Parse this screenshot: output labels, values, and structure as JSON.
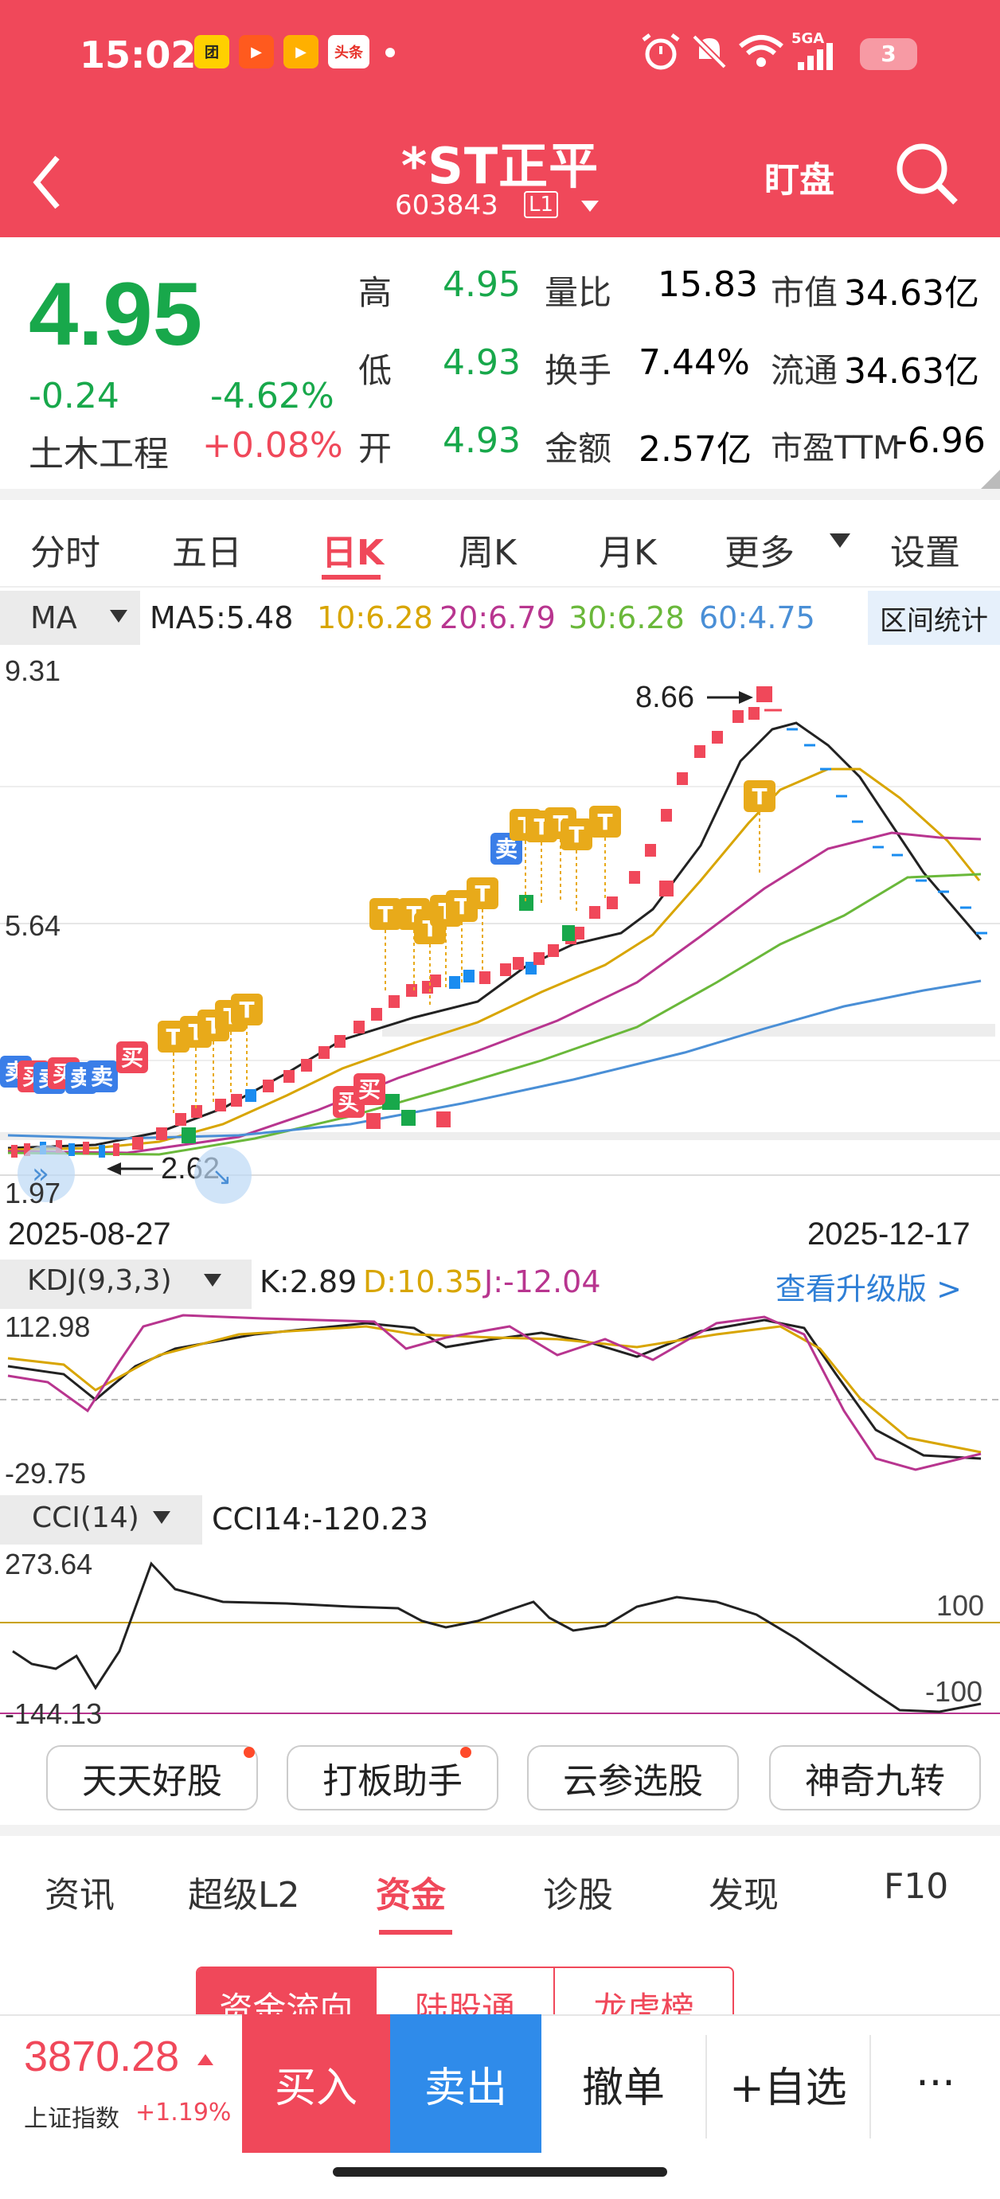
{
  "status_bar": {
    "time": "15:02",
    "apps": [
      {
        "name": "app-icon-1",
        "color": "#ffd000",
        "label": "团"
      },
      {
        "name": "app-icon-2",
        "color": "#ff5a1e",
        "label": "▶"
      },
      {
        "name": "app-icon-3",
        "color": "#ffb000",
        "label": "▶"
      },
      {
        "name": "app-icon-4",
        "color": "#e7332b",
        "label": "头条"
      }
    ],
    "signal": "5GA",
    "battery": "3"
  },
  "header": {
    "title": "*ST正平",
    "code": "603843",
    "level": "L1",
    "watch_label": "盯盘"
  },
  "quote": {
    "price": "4.95",
    "change": "-0.24",
    "change_pct": "-4.62%",
    "sector": "土木工程",
    "sector_pct": "+0.08%",
    "stats": [
      {
        "l1": "高",
        "v1": "4.95",
        "l2": "量比",
        "v2": "15.83",
        "l3": "市值",
        "v3": "34.63亿"
      },
      {
        "l1": "低",
        "v1": "4.93",
        "l2": "换手",
        "v2": "7.44%",
        "l3": "流通",
        "v3": "34.63亿"
      },
      {
        "l1": "开",
        "v1": "4.93",
        "l2": "金额",
        "v2": "2.57亿",
        "l3": "市盈TTM",
        "v3": "-6.96"
      }
    ]
  },
  "period_tabs": [
    "分时",
    "五日",
    "日K",
    "周K",
    "月K",
    "更多",
    "设置"
  ],
  "active_tab": "日K",
  "ma": {
    "selector": "MA",
    "items": [
      {
        "label": "MA5:5.48",
        "color": "#222222"
      },
      {
        "label": "10:6.28",
        "color": "#d8a500"
      },
      {
        "label": "20:6.79",
        "color": "#b8358f"
      },
      {
        "label": "30:6.28",
        "color": "#6ab83a"
      },
      {
        "label": "60:4.75",
        "color": "#4a8fd6"
      }
    ],
    "range_stats": "区间统计"
  },
  "chart_data": [
    {
      "type": "candlestick",
      "title": "",
      "y_ticks": [
        "9.31",
        "5.64",
        "1.97"
      ],
      "ylim": [
        1.97,
        9.31
      ],
      "annotations": [
        "8.66",
        "2.62"
      ],
      "date_start": "2025-08-27",
      "date_end": "2025-12-17",
      "markers": [
        "卖",
        "买",
        "T"
      ]
    },
    {
      "type": "line",
      "title": "KDJ(9,3,3)",
      "series": [
        {
          "name": "K:2.89",
          "color": "#222222"
        },
        {
          "name": "D:10.35",
          "color": "#d8a500"
        },
        {
          "name": "J:-12.04",
          "color": "#b8358f"
        }
      ],
      "y_ticks": [
        "112.98",
        "-29.75"
      ],
      "upgrade_link": "查看升级版 >"
    },
    {
      "type": "line",
      "title": "CCI(14)",
      "value_label": "CCI14:-120.23",
      "y_ticks": [
        "273.64",
        "-144.13"
      ],
      "ref_lines": [
        "100",
        "-100"
      ]
    }
  ],
  "tools": [
    "天天好股",
    "打板助手",
    "云参选股",
    "神奇九转"
  ],
  "info_tabs": [
    "资讯",
    "超级L2",
    "资金",
    "诊股",
    "发现",
    "F10"
  ],
  "active_info_tab": "资金",
  "sub_tabs": [
    "资金流向",
    "陆股通",
    "龙虎榜"
  ],
  "bottom": {
    "index_value": "3870.28",
    "index_name": "上证指数",
    "index_pct": "+1.19%",
    "buy": "买入",
    "sell": "卖出",
    "cancel": "撤单",
    "watchlist": "+自选",
    "more": "···"
  }
}
